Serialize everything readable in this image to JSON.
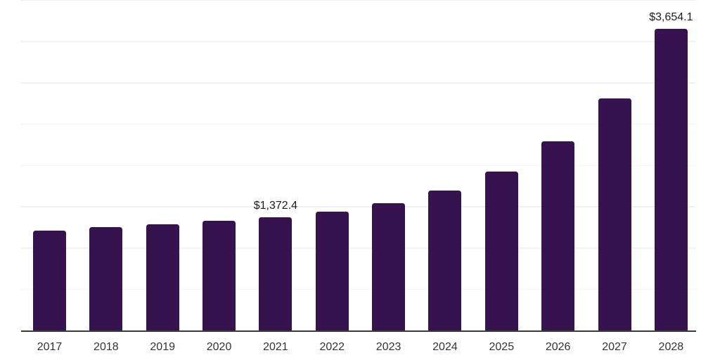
{
  "chart_data": {
    "type": "bar",
    "categories": [
      "2017",
      "2018",
      "2019",
      "2020",
      "2021",
      "2022",
      "2023",
      "2024",
      "2025",
      "2026",
      "2027",
      "2028"
    ],
    "values": [
      1205,
      1250,
      1283,
      1327,
      1372.4,
      1437,
      1543,
      1696,
      1923,
      2288,
      2812,
      3654.1
    ],
    "value_labels": {
      "2021": "$1,372.4",
      "2028": "$3,654.1"
    },
    "xlabel": "",
    "ylabel": "",
    "ylim": [
      0,
      4000
    ],
    "gridline_step": 500,
    "grid": "horizontal-only",
    "y_tick_labels_visible": false,
    "legend": "none",
    "colors": {
      "bar": "#36124E",
      "gridline": "#F1F1F1",
      "axis_line": "#3A3A3A",
      "tick_label": "#333333",
      "value_label": "#1C1C1C",
      "background": "#FFFFFF"
    }
  }
}
